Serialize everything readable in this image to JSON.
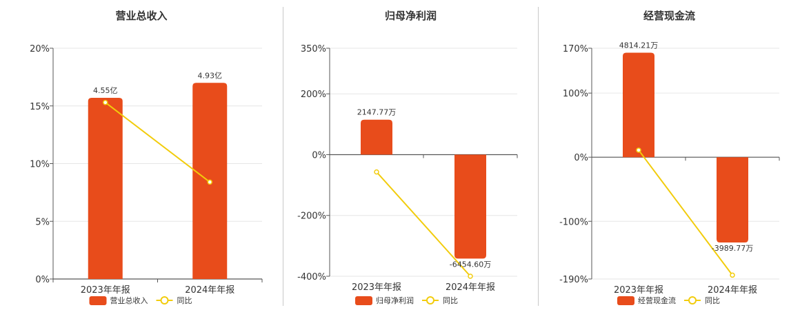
{
  "colors": {
    "bar": "#e84c1b",
    "line": "#f2cc0c",
    "grid": "#e6e6e6",
    "axis": "#555555"
  },
  "chart_data": [
    {
      "type": "bar",
      "title": "营业总收入",
      "categories": [
        "2023年年报",
        "2024年年报"
      ],
      "series": [
        {
          "name": "营业总收入",
          "type": "bar",
          "values": [
            15.7,
            17.0
          ],
          "labels": [
            "4.55亿",
            "4.93亿"
          ]
        },
        {
          "name": "同比",
          "type": "line",
          "values": [
            15.3,
            8.4
          ]
        }
      ],
      "y_ticks": [
        "20%",
        "15%",
        "10%",
        "5%",
        "0%"
      ],
      "ylim": [
        0,
        20
      ],
      "grid": true,
      "legend": "bottom"
    },
    {
      "type": "bar",
      "title": "归母净利润",
      "categories": [
        "2023年年报",
        "2024年年报"
      ],
      "series": [
        {
          "name": "归母净利润",
          "type": "bar",
          "values": [
            115,
            -342
          ],
          "labels": [
            "2147.77万",
            "-6454.60万"
          ]
        },
        {
          "name": "同比",
          "type": "line",
          "values": [
            -57,
            -400
          ]
        }
      ],
      "y_ticks": [
        "350%",
        "200%",
        "0%",
        "-200%",
        "-400%"
      ],
      "ylim": [
        -400,
        350
      ],
      "grid": true,
      "legend": "bottom"
    },
    {
      "type": "bar",
      "title": "经营现金流",
      "categories": [
        "2023年年报",
        "2024年年报"
      ],
      "series": [
        {
          "name": "经营现金流",
          "type": "bar",
          "values": [
            163,
            -133
          ],
          "labels": [
            "4814.21万",
            "-3989.77万"
          ]
        },
        {
          "name": "同比",
          "type": "line",
          "values": [
            11,
            -184
          ]
        }
      ],
      "y_ticks": [
        "170%",
        "100%",
        "0%",
        "-100%",
        "-190%"
      ],
      "ylim": [
        -190,
        170
      ],
      "grid": true,
      "legend": "bottom"
    }
  ]
}
